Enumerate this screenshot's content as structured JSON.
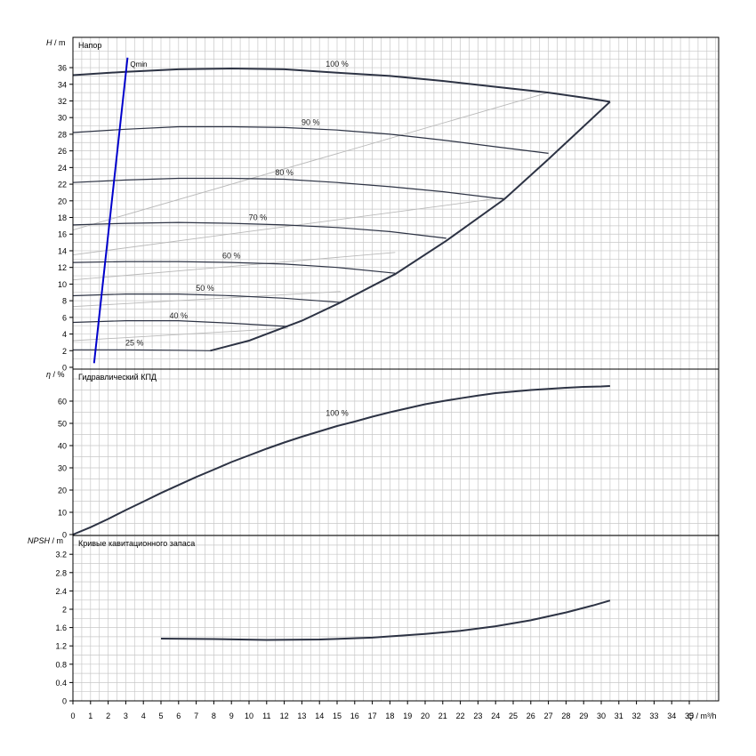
{
  "chart_data": [
    {
      "type": "line",
      "title": "Напор",
      "ylabel_var": "H",
      "ylabel_unit": "/ m",
      "xlim": [
        0,
        36
      ],
      "ylim": [
        0,
        38
      ],
      "yticks": [
        0,
        2,
        4,
        6,
        8,
        10,
        12,
        14,
        16,
        18,
        20,
        22,
        24,
        26,
        28,
        30,
        32,
        34,
        36
      ],
      "series": [
        {
          "name": "100 %",
          "label_at": [
            15,
            36.1
          ],
          "points": [
            [
              0,
              35.1
            ],
            [
              3,
              35.5
            ],
            [
              6,
              35.8
            ],
            [
              9,
              35.9
            ],
            [
              12,
              35.8
            ],
            [
              15,
              35.4
            ],
            [
              18,
              35.0
            ],
            [
              21,
              34.4
            ],
            [
              24,
              33.7
            ],
            [
              27,
              33.0
            ],
            [
              29,
              32.4
            ],
            [
              30.5,
              31.9
            ]
          ]
        },
        {
          "name": "90 %",
          "label_at": [
            13.5,
            29.1
          ],
          "points": [
            [
              0,
              28.2
            ],
            [
              3,
              28.6
            ],
            [
              6,
              28.9
            ],
            [
              9,
              28.9
            ],
            [
              12,
              28.8
            ],
            [
              15,
              28.5
            ],
            [
              18,
              28.0
            ],
            [
              21,
              27.3
            ],
            [
              24,
              26.5
            ],
            [
              27,
              25.7
            ]
          ]
        },
        {
          "name": "80 %",
          "label_at": [
            12,
            23.1
          ],
          "points": [
            [
              0,
              22.2
            ],
            [
              3,
              22.5
            ],
            [
              6,
              22.7
            ],
            [
              9,
              22.7
            ],
            [
              12,
              22.6
            ],
            [
              15,
              22.2
            ],
            [
              18,
              21.7
            ],
            [
              21,
              21.1
            ],
            [
              24.5,
              20.2
            ]
          ]
        },
        {
          "name": "70 %",
          "label_at": [
            10.5,
            17.7
          ],
          "points": [
            [
              0,
              17.1
            ],
            [
              3,
              17.3
            ],
            [
              6,
              17.4
            ],
            [
              9,
              17.3
            ],
            [
              12,
              17.1
            ],
            [
              15,
              16.8
            ],
            [
              18,
              16.3
            ],
            [
              21.2,
              15.5
            ]
          ]
        },
        {
          "name": "60 %",
          "label_at": [
            9,
            13.1
          ],
          "points": [
            [
              0,
              12.6
            ],
            [
              3,
              12.7
            ],
            [
              6,
              12.7
            ],
            [
              9,
              12.6
            ],
            [
              12,
              12.4
            ],
            [
              15,
              12.0
            ],
            [
              18.3,
              11.3
            ]
          ]
        },
        {
          "name": "50 %",
          "label_at": [
            7.5,
            9.2
          ],
          "points": [
            [
              0,
              8.6
            ],
            [
              3,
              8.8
            ],
            [
              6,
              8.8
            ],
            [
              9,
              8.6
            ],
            [
              12,
              8.3
            ],
            [
              15.2,
              7.8
            ]
          ]
        },
        {
          "name": "40 %",
          "label_at": [
            6,
            5.9
          ],
          "points": [
            [
              0,
              5.4
            ],
            [
              3,
              5.6
            ],
            [
              6,
              5.6
            ],
            [
              9,
              5.3
            ],
            [
              12.2,
              4.9
            ]
          ]
        },
        {
          "name": "25 %",
          "label_at": [
            3.5,
            2.6
          ],
          "points": [
            [
              0,
              2.1
            ],
            [
              3,
              2.1
            ],
            [
              6,
              2.05
            ],
            [
              7.8,
              2.0
            ]
          ]
        }
      ],
      "qmin": {
        "label": "Qmin",
        "points": [
          [
            1.2,
            0.5
          ],
          [
            3.1,
            37.2
          ]
        ]
      },
      "envelope_points": [
        [
          7.8,
          2.0
        ],
        [
          10,
          3.2
        ],
        [
          13,
          5.6
        ],
        [
          15.2,
          7.8
        ],
        [
          18.3,
          11.2
        ],
        [
          21.2,
          15.2
        ],
        [
          24.5,
          20.2
        ],
        [
          27,
          25.0
        ],
        [
          30.5,
          31.9
        ]
      ],
      "efficiency_lines": [
        {
          "points": [
            [
              0,
              16.5
            ],
            [
              27,
              33.0
            ]
          ]
        },
        {
          "points": [
            [
              0,
              13.5
            ],
            [
              24.5,
              20.4
            ]
          ]
        },
        {
          "points": [
            [
              0,
              10.5
            ],
            [
              18.3,
              13.8
            ]
          ]
        },
        {
          "points": [
            [
              0,
              7.3
            ],
            [
              15.2,
              9.1
            ]
          ]
        },
        {
          "points": [
            [
              0,
              3.2
            ],
            [
              12.2,
              4.7
            ]
          ]
        }
      ]
    },
    {
      "type": "line",
      "title": "Гидравлический КПД",
      "ylabel_var": "η",
      "ylabel_unit": "/ %",
      "xlim": [
        0,
        36
      ],
      "ylim": [
        0,
        72
      ],
      "yticks": [
        0,
        10,
        20,
        30,
        40,
        50,
        60
      ],
      "series": [
        {
          "name": "100 %",
          "label_at": [
            15,
            53.4
          ],
          "points": [
            [
              0,
              0
            ],
            [
              1,
              3.3
            ],
            [
              2,
              7
            ],
            [
              3,
              11
            ],
            [
              4,
              14.8
            ],
            [
              5,
              18.7
            ],
            [
              6,
              22.3
            ],
            [
              7,
              25.9
            ],
            [
              8,
              29.2
            ],
            [
              9,
              32.6
            ],
            [
              10,
              35.6
            ],
            [
              11,
              38.6
            ],
            [
              12,
              41.4
            ],
            [
              13,
              44
            ],
            [
              14,
              46.4
            ],
            [
              15,
              48.8
            ],
            [
              16,
              50.8
            ],
            [
              17,
              53
            ],
            [
              18,
              55
            ],
            [
              19,
              56.8
            ],
            [
              20,
              58.6
            ],
            [
              21,
              60
            ],
            [
              22,
              61.3
            ],
            [
              23,
              62.5
            ],
            [
              24,
              63.6
            ],
            [
              25,
              64.3
            ],
            [
              26,
              65
            ],
            [
              27,
              65.5
            ],
            [
              28,
              66
            ],
            [
              29,
              66.4
            ],
            [
              30,
              66.6
            ],
            [
              30.5,
              66.8
            ]
          ]
        }
      ]
    },
    {
      "type": "line",
      "title": "Кривые кавитационного запаса",
      "ylabel_var": "NPSH",
      "ylabel_unit": "/ m",
      "xlim": [
        0,
        36
      ],
      "ylim": [
        0,
        3.6
      ],
      "yticks": [
        0,
        0.4,
        0.8,
        1.2,
        1.6,
        2,
        2.4,
        2.8,
        3.2
      ],
      "series": [
        {
          "name": "",
          "points": [
            [
              5,
              1.36
            ],
            [
              8,
              1.35
            ],
            [
              11,
              1.33
            ],
            [
              14,
              1.34
            ],
            [
              17,
              1.38
            ],
            [
              20,
              1.46
            ],
            [
              22,
              1.53
            ],
            [
              24,
              1.63
            ],
            [
              26,
              1.76
            ],
            [
              28,
              1.93
            ],
            [
              29.5,
              2.08
            ],
            [
              30.5,
              2.19
            ]
          ]
        }
      ]
    }
  ],
  "x_axis": {
    "label_var": "Q",
    "label_unit": "/ m³/h",
    "ticks": [
      0,
      1,
      2,
      3,
      4,
      5,
      6,
      7,
      8,
      9,
      10,
      11,
      12,
      13,
      14,
      15,
      16,
      17,
      18,
      19,
      20,
      21,
      22,
      23,
      24,
      25,
      26,
      27,
      28,
      29,
      30,
      31,
      32,
      33,
      34,
      35
    ]
  },
  "colors": {
    "curve": "#2d3344",
    "qmin": "#0000cc",
    "efficiency": "#b9b9b9",
    "grid": "#c8c8c8",
    "frame": "#000000"
  }
}
